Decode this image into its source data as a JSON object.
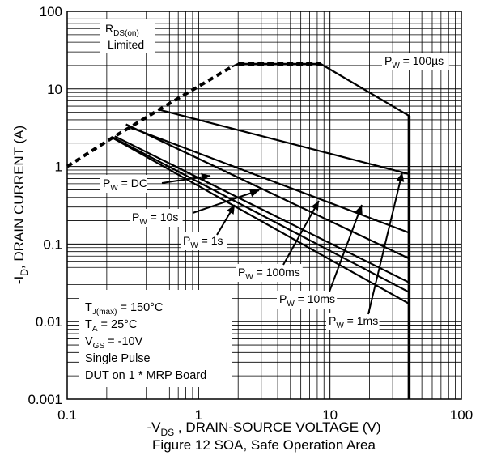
{
  "chart_data": {
    "type": "line",
    "title": "Figure 12 SOA, Safe Operation Area",
    "xlabel": "-V_DS, DRAIN-SOURCE VOLTAGE (V)",
    "ylabel": "-I_D, DRAIN CURRENT (A)",
    "xscale": "log",
    "yscale": "log",
    "xlim": [
      0.1,
      100
    ],
    "ylim": [
      0.001,
      100
    ],
    "grid": true,
    "x_ticks": [
      "0.1",
      "1",
      "10",
      "100"
    ],
    "y_ticks": [
      "0.001",
      "0.01",
      "0.1",
      "1",
      "10",
      "100"
    ],
    "rds_limit": {
      "label_main": "R",
      "label_sub": "DS(on)",
      "label_line2": "Limited",
      "x": [
        0.1,
        0.23,
        0.3,
        0.5,
        1.8
      ],
      "y": [
        1.0,
        2.45,
        3.2,
        5.4,
        19.4
      ]
    },
    "current_limit": {
      "x": [
        2.0,
        8.5
      ],
      "y": [
        21,
        21
      ]
    },
    "series": [
      {
        "name": "100µs",
        "x": [
          1.8,
          2.0,
          8.5,
          40.0,
          40.0
        ],
        "y": [
          19.4,
          21,
          21,
          4.5,
          0.001
        ]
      },
      {
        "name": "1ms",
        "x": [
          0.5,
          40.0
        ],
        "y": [
          5.4,
          0.8
        ]
      },
      {
        "name": "10ms",
        "x": [
          0.3,
          40.0
        ],
        "y": [
          3.2,
          0.14
        ]
      },
      {
        "name": "100ms",
        "x": [
          0.28,
          40.0
        ],
        "y": [
          3.5,
          0.065
        ]
      },
      {
        "name": "1s",
        "x": [
          0.23,
          40.0
        ],
        "y": [
          2.45,
          0.032
        ]
      },
      {
        "name": "10s",
        "x": [
          0.22,
          40.0
        ],
        "y": [
          2.4,
          0.024
        ]
      },
      {
        "name": "DC",
        "x": [
          0.22,
          40.0
        ],
        "y": [
          2.35,
          0.017
        ]
      }
    ],
    "pulse_labels": [
      {
        "p": "P",
        "sub": "W",
        "text": " = 100µs"
      },
      {
        "p": "P",
        "sub": "W",
        "text": " = 1ms"
      },
      {
        "p": "P",
        "sub": "W",
        "text": " = 10ms"
      },
      {
        "p": "P",
        "sub": "W",
        "text": " = 100ms"
      },
      {
        "p": "P",
        "sub": "W",
        "text": " = 1s"
      },
      {
        "p": "P",
        "sub": "W",
        "text": " = 10s"
      },
      {
        "p": "P",
        "sub": "W",
        "text": " = DC"
      }
    ],
    "conditions": [
      {
        "main": "T",
        "sub": "J(max)",
        "rest": " = 150°C"
      },
      {
        "main": "T",
        "sub": "A",
        "rest": " = 25°C"
      },
      {
        "main": "V",
        "sub": "GS",
        "rest": " = -10V"
      },
      {
        "main": "Single Pulse",
        "sub": "",
        "rest": ""
      },
      {
        "main": "DUT on 1 * MRP Board",
        "sub": "",
        "rest": ""
      }
    ]
  }
}
